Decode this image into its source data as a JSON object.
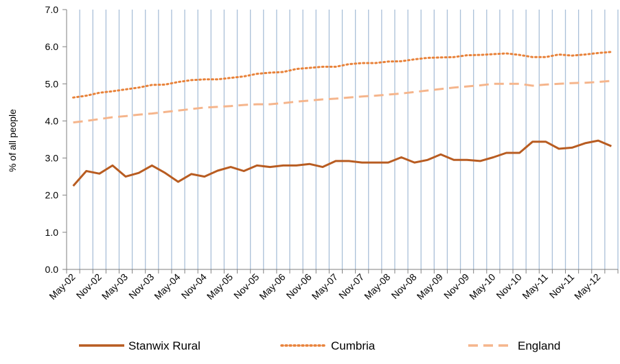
{
  "chart_data": {
    "type": "line",
    "title": "",
    "xlabel": "",
    "ylabel": "% of all people",
    "ylim": [
      0,
      7
    ],
    "yticks": [
      "0.0",
      "1.0",
      "2.0",
      "3.0",
      "4.0",
      "5.0",
      "6.0",
      "7.0"
    ],
    "grid": "vertical",
    "legend_position": "bottom",
    "x": [
      "May-02",
      "Aug-02",
      "Nov-02",
      "Feb-03",
      "May-03",
      "Aug-03",
      "Nov-03",
      "Feb-04",
      "May-04",
      "Aug-04",
      "Nov-04",
      "Feb-05",
      "May-05",
      "Aug-05",
      "Nov-05",
      "Feb-06",
      "May-06",
      "Aug-06",
      "Nov-06",
      "Feb-07",
      "May-07",
      "Aug-07",
      "Nov-07",
      "Feb-08",
      "May-08",
      "Aug-08",
      "Nov-08",
      "Feb-09",
      "May-09",
      "Aug-09",
      "Nov-09",
      "Feb-10",
      "May-10",
      "Aug-10",
      "Nov-10",
      "Feb-11",
      "May-11",
      "Aug-11",
      "Nov-11",
      "Feb-12",
      "May-12",
      "Aug-12"
    ],
    "xtick_labels": [
      "May-02",
      "Nov-02",
      "May-03",
      "Nov-03",
      "May-04",
      "Nov-04",
      "May-05",
      "Nov-05",
      "May-06",
      "Nov-06",
      "May-07",
      "Nov-07",
      "May-08",
      "Nov-08",
      "May-09",
      "Nov-09",
      "May-10",
      "Nov-10",
      "May-11",
      "Nov-11",
      "May-12"
    ],
    "series": [
      {
        "name": "Stanwix Rural",
        "style": "solid",
        "color": "#b85c21",
        "values": [
          2.25,
          2.65,
          2.58,
          2.8,
          2.5,
          2.6,
          2.8,
          2.6,
          2.36,
          2.57,
          2.5,
          2.66,
          2.76,
          2.65,
          2.8,
          2.76,
          2.8,
          2.8,
          2.84,
          2.76,
          2.92,
          2.92,
          2.88,
          2.88,
          2.88,
          3.02,
          2.88,
          2.95,
          3.1,
          2.95,
          2.95,
          2.92,
          3.02,
          3.14,
          3.14,
          3.44,
          3.44,
          3.25,
          3.28,
          3.4,
          3.47,
          3.32
        ]
      },
      {
        "name": "Cumbria",
        "style": "dotted",
        "color": "#e8823a",
        "values": [
          4.63,
          4.68,
          4.76,
          4.8,
          4.85,
          4.9,
          4.97,
          4.98,
          5.05,
          5.1,
          5.12,
          5.12,
          5.16,
          5.2,
          5.27,
          5.3,
          5.32,
          5.4,
          5.43,
          5.46,
          5.46,
          5.53,
          5.56,
          5.56,
          5.6,
          5.61,
          5.66,
          5.7,
          5.71,
          5.72,
          5.77,
          5.78,
          5.8,
          5.82,
          5.78,
          5.72,
          5.72,
          5.79,
          5.76,
          5.79,
          5.83,
          5.86
        ]
      },
      {
        "name": "England",
        "style": "dashed",
        "color": "#f5b58c",
        "values": [
          3.96,
          4.0,
          4.05,
          4.1,
          4.13,
          4.17,
          4.2,
          4.24,
          4.28,
          4.32,
          4.36,
          4.38,
          4.4,
          4.43,
          4.45,
          4.45,
          4.48,
          4.52,
          4.55,
          4.58,
          4.6,
          4.63,
          4.66,
          4.68,
          4.71,
          4.74,
          4.78,
          4.82,
          4.86,
          4.9,
          4.93,
          4.96,
          5.0,
          5.0,
          5.0,
          4.95,
          4.98,
          5.0,
          5.02,
          5.03,
          5.05,
          5.08
        ]
      }
    ]
  }
}
